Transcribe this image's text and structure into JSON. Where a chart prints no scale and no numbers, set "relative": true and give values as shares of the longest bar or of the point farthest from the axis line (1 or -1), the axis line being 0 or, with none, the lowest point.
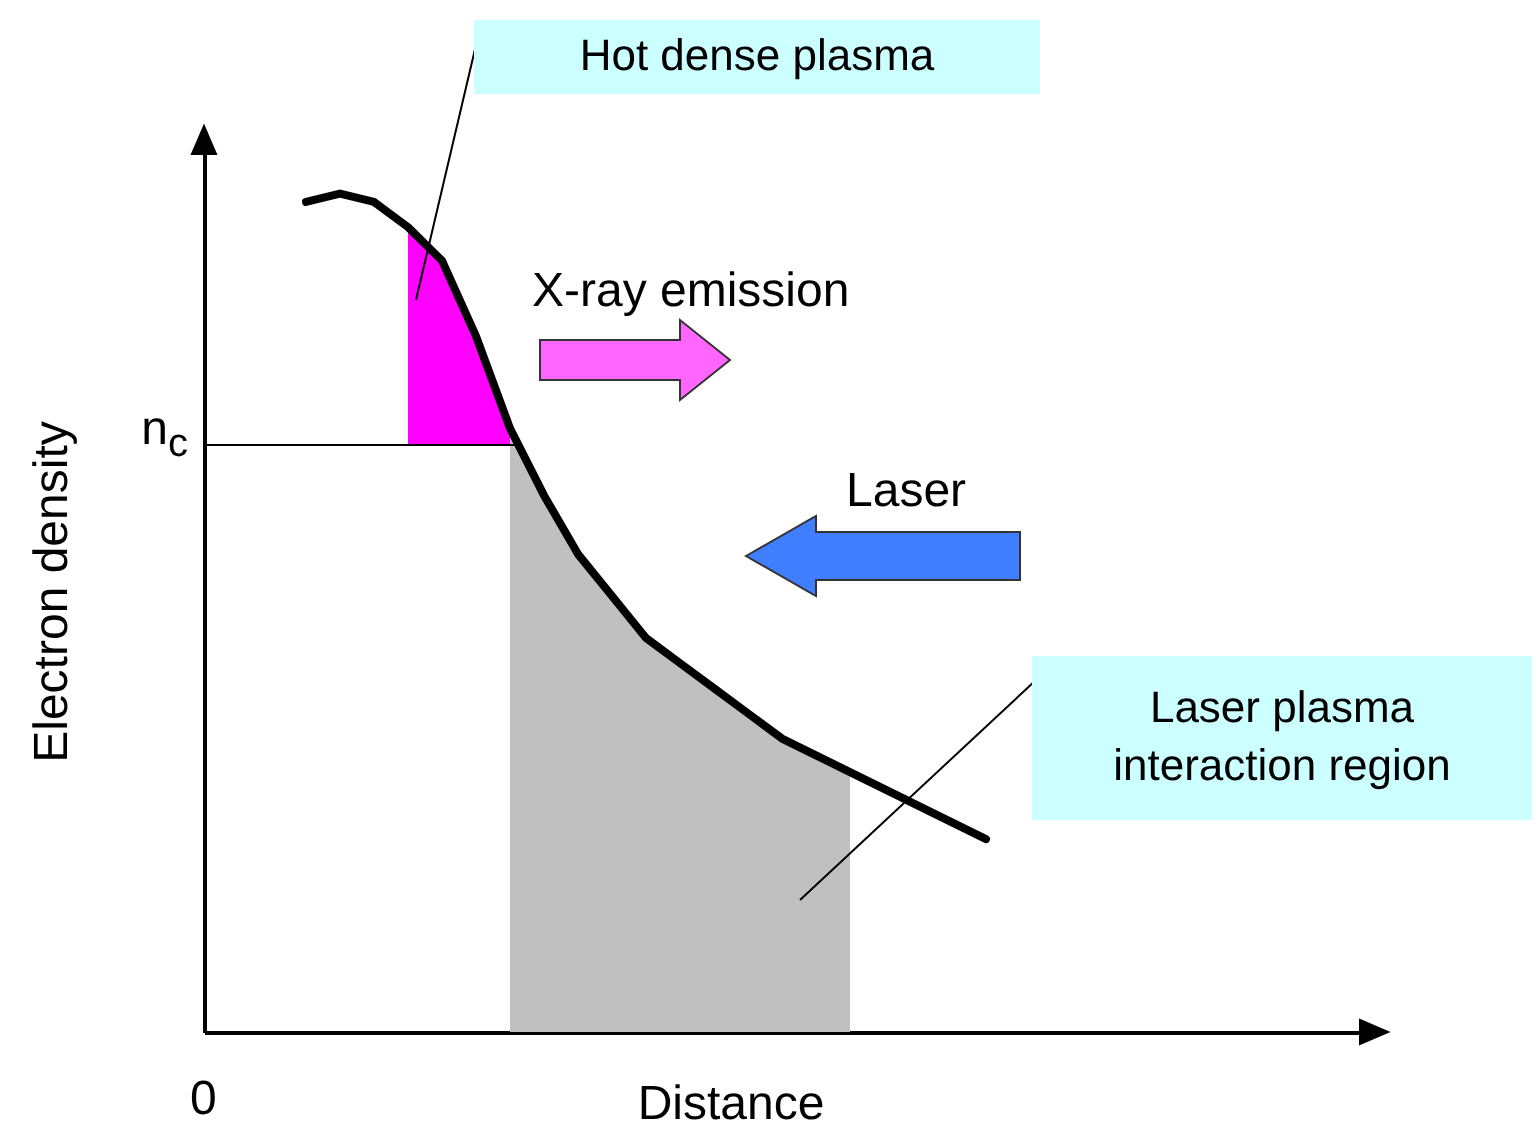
{
  "chart_data": {
    "type": "line",
    "relative": true,
    "xlabel": "Distance",
    "ylabel": "Electron density",
    "categories": [
      null,
      null,
      null,
      null,
      null,
      null,
      null,
      null,
      null,
      null,
      null,
      null,
      null,
      null,
      null,
      null,
      null,
      null,
      null,
      null,
      null,
      null,
      null,
      null,
      null,
      null,
      null,
      null,
      null,
      null,
      null,
      null,
      null,
      null,
      null
    ],
    "series": [
      {
        "type": "area",
        "color": "#c0c0c0",
        "values": [
          null,
          null,
          null,
          null,
          null,
          null,
          null,
          null,
          null,
          0.72,
          0.64,
          0.57,
          0.52,
          0.47,
          0.44,
          0.41,
          0.38,
          0.35,
          0.33,
          0.31,
          null,
          null,
          null,
          null,
          null,
          null,
          null,
          null,
          null,
          null,
          null,
          null,
          null,
          null,
          null
        ]
      },
      {
        "type": "area",
        "color": "#ff00ff",
        "values": [
          null,
          null,
          null,
          null,
          null,
          null,
          0.96,
          0.92,
          0.83,
          0.72,
          null,
          null,
          null,
          null,
          null,
          null,
          null,
          null,
          null,
          null,
          null,
          null,
          null,
          null,
          null,
          null,
          null,
          null,
          null,
          null,
          null,
          null,
          null,
          null,
          null
        ]
      },
      {
        "type": "line",
        "color": "#000000",
        "values": [
          null,
          null,
          null,
          0.99,
          1,
          0.99,
          0.96,
          0.92,
          0.83,
          0.72,
          0.64,
          0.57,
          0.52,
          0.47,
          0.44,
          0.41,
          0.38,
          0.35,
          0.33,
          0.31,
          0.29,
          0.27,
          0.25,
          0.23,
          null,
          null,
          null,
          null,
          null,
          null,
          null,
          null,
          null,
          null,
          null
        ]
      }
    ],
    "ref_lines": [
      {
        "axis": "y",
        "value": 0.7,
        "label": "n$_{c}$",
        "color": "#000000"
      }
    ],
    "annotations": [
      "Hot dense plasma",
      "Laser plasma interaction region",
      "X-ray emission",
      "Laser",
      "0"
    ],
    "grid": false,
    "marker": "none",
    "line_style": "solid"
  }
}
